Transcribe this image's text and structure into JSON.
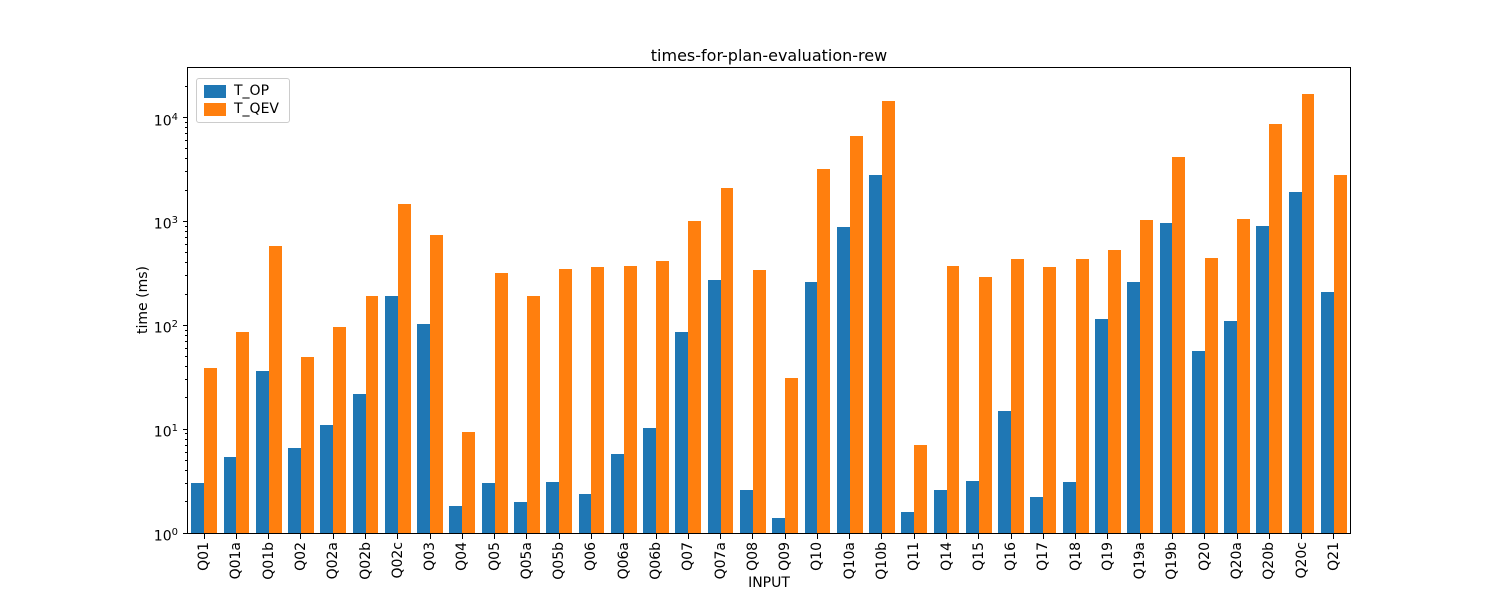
{
  "title": "times-for-plan-evaluation-rew",
  "background": "#ffffff",
  "chart_data": {
    "type": "bar",
    "title": "times-for-plan-evaluation-rew",
    "xlabel": "INPUT",
    "ylabel": "time (ms)",
    "yscale": "log",
    "ylim": [
      1,
      30000
    ],
    "ytick_exponents": [
      0,
      1,
      2,
      3,
      4
    ],
    "ytick_labels": [
      "10^0",
      "10^1",
      "10^2",
      "10^3",
      "10^4"
    ],
    "grid": false,
    "legend_position": "upper-left",
    "categories": [
      "Q01",
      "Q01a",
      "Q01b",
      "Q02",
      "Q02a",
      "Q02b",
      "Q02c",
      "Q03",
      "Q04",
      "Q05",
      "Q05a",
      "Q05b",
      "Q06",
      "Q06a",
      "Q06b",
      "Q07",
      "Q07a",
      "Q08",
      "Q09",
      "Q10",
      "Q10a",
      "Q10b",
      "Q11",
      "Q14",
      "Q15",
      "Q16",
      "Q17",
      "Q18",
      "Q19",
      "Q19a",
      "Q19b",
      "Q20",
      "Q20a",
      "Q20b",
      "Q20c",
      "Q21"
    ],
    "series": [
      {
        "name": "T_OP",
        "color": "#1f77b4",
        "values": [
          3.0,
          5.4,
          36,
          6.6,
          11,
          22,
          190,
          103,
          1.8,
          3.0,
          2.0,
          3.1,
          2.4,
          5.8,
          10.3,
          86,
          270,
          2.6,
          1.4,
          260,
          880,
          2800,
          1.6,
          2.6,
          3.2,
          14.8,
          2.2,
          3.1,
          116,
          260,
          970,
          57,
          110,
          910,
          1940,
          207
        ]
      },
      {
        "name": "T_QEV",
        "color": "#ff7f0e",
        "values": [
          39,
          86,
          575,
          50,
          96,
          190,
          1460,
          740,
          9.4,
          318,
          192,
          350,
          360,
          370,
          412,
          1000,
          2090,
          340,
          31,
          3190,
          6700,
          14300,
          7.0,
          370,
          293,
          434,
          368,
          434,
          530,
          1030,
          4130,
          443,
          1050,
          8650,
          17000,
          2800
        ]
      }
    ]
  }
}
